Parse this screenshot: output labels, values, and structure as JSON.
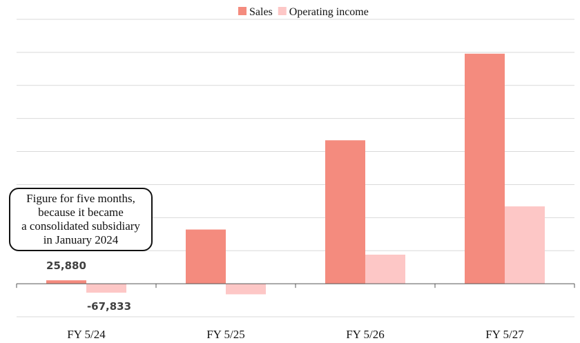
{
  "chart_data": {
    "type": "bar",
    "categories": [
      "FY 5/24",
      "FY 5/25",
      "FY 5/26",
      "FY 5/27"
    ],
    "series": [
      {
        "name": "Sales",
        "color": "#f48b7e",
        "values": [
          25880,
          410000,
          1085000,
          1740000
        ]
      },
      {
        "name": "Operating income",
        "color": "#fdc7c6",
        "values": [
          -67833,
          -80000,
          220000,
          585000
        ]
      }
    ],
    "data_labels": [
      {
        "series": "Sales",
        "category": "FY 5/24",
        "text": "25,880"
      },
      {
        "series": "Operating income",
        "category": "FY 5/24",
        "text": "-67,833"
      }
    ],
    "annotation": "Figure for five months,\nbecause it became\na consolidated subsidiary\nin January 2024",
    "ylim": [
      -250000,
      2000000
    ],
    "gridline_step": 250000,
    "grid": true,
    "legend_position": "top"
  }
}
